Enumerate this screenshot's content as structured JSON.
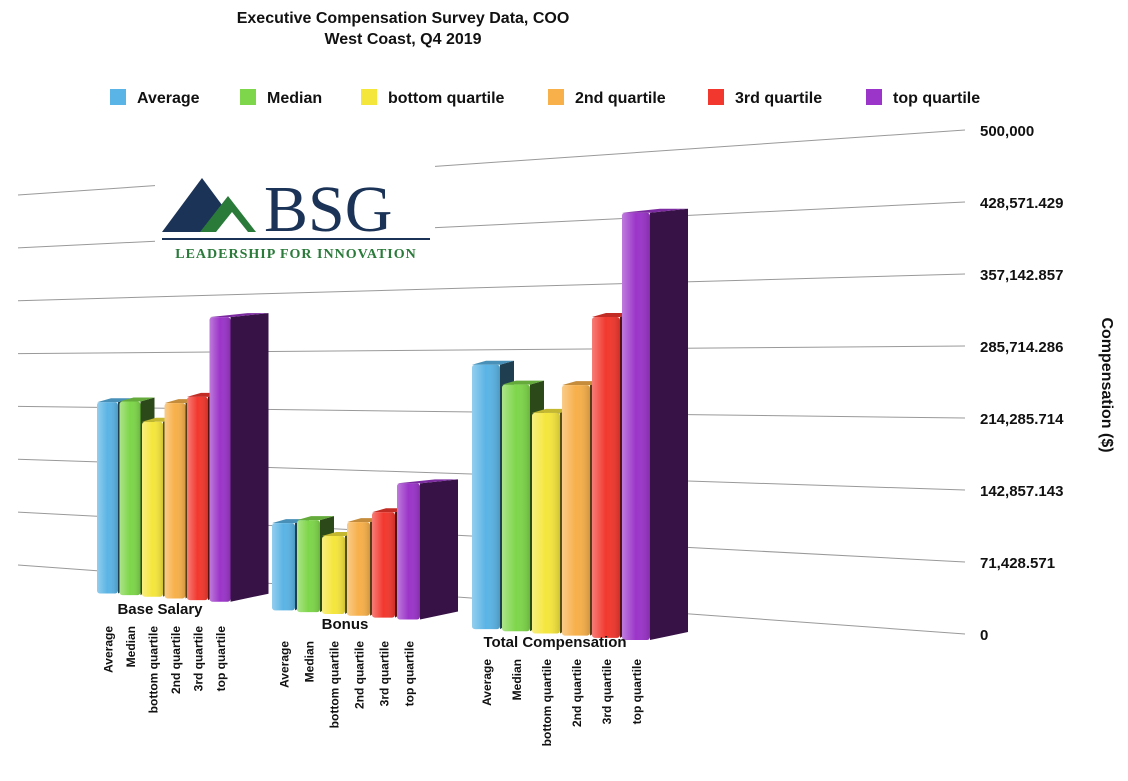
{
  "logo": {
    "text": "BSG",
    "tagline": "LEADERSHIP FOR INNOVATION"
  },
  "chart_data": {
    "type": "bar3d",
    "title": "Executive Compensation Survey Data, COO",
    "subtitle": "West Coast, Q4 2019",
    "y_axis_label": "Compensation ($)",
    "categories": [
      "Base Salary",
      "Bonus",
      "Total Compensation"
    ],
    "series": [
      {
        "name": "Average",
        "color": "#5ab4e5",
        "values": [
          250000,
          107000,
          303000
        ]
      },
      {
        "name": "Median",
        "color": "#7ed64a",
        "values": [
          251000,
          112000,
          280000
        ]
      },
      {
        "name": "bottom quartile",
        "color": "#f5e63c",
        "values": [
          225000,
          94000,
          248000
        ]
      },
      {
        "name": "2nd quartile",
        "color": "#f7b04a",
        "values": [
          249000,
          112000,
          279000
        ]
      },
      {
        "name": "3rd quartile",
        "color": "#f2382e",
        "values": [
          257000,
          125000,
          354000
        ]
      },
      {
        "name": "top quartile",
        "color": "#9b35c9",
        "values": [
          357000,
          160000,
          467000
        ]
      }
    ],
    "ylim": [
      0,
      500000
    ],
    "yticks": [
      0,
      {
        "value": 71428.571,
        "label": "71,428.571"
      },
      {
        "value": 142857.143,
        "label": "142,857.143"
      },
      {
        "value": 214285.714,
        "label": "214,285.714"
      },
      {
        "value": 285714.286,
        "label": "285,714.286"
      },
      {
        "value": 357142.857,
        "label": "357,142.857"
      },
      {
        "value": 428571.429,
        "label": "428,571.429"
      },
      {
        "value": 500000,
        "label": "500,000"
      }
    ],
    "grid": true,
    "legend": "top"
  }
}
